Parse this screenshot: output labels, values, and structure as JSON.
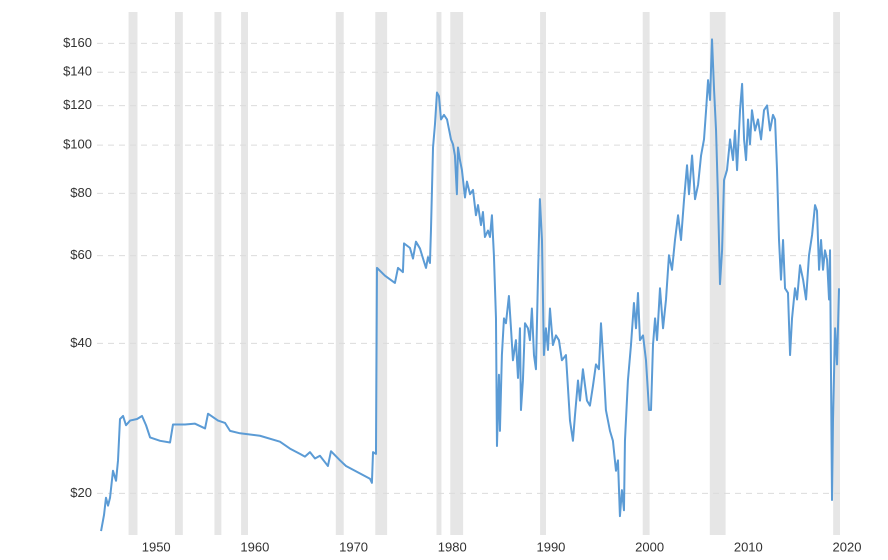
{
  "chart_data": {
    "type": "line",
    "log_y": true,
    "grid": true,
    "xlim": [
      1944,
      2020
    ],
    "xticks": [
      1950,
      1960,
      1970,
      1980,
      1990,
      2000,
      2010,
      2020
    ],
    "ylim": [
      16.5,
      185
    ],
    "yticks": [
      {
        "value": 20,
        "label": "$20"
      },
      {
        "value": 40,
        "label": "$40"
      },
      {
        "value": 60,
        "label": "$60"
      },
      {
        "value": 80,
        "label": "$80"
      },
      {
        "value": 100,
        "label": "$100"
      },
      {
        "value": 120,
        "label": "$120"
      },
      {
        "value": 140,
        "label": "$140"
      },
      {
        "value": 160,
        "label": "$160"
      }
    ],
    "recessions": [
      [
        1947.2,
        1948.1
      ],
      [
        1951.9,
        1952.7
      ],
      [
        1955.9,
        1956.6
      ],
      [
        1958.6,
        1959.3
      ],
      [
        1968.2,
        1969.0
      ],
      [
        1972.2,
        1973.4
      ],
      [
        1978.4,
        1978.9
      ],
      [
        1979.8,
        1981.1
      ],
      [
        1988.9,
        1989.5
      ],
      [
        1999.3,
        2000.0
      ],
      [
        2006.1,
        2007.7
      ],
      [
        2018.6,
        2019.3
      ]
    ],
    "recession_color": "#e6e6e6",
    "series": [
      {
        "color": "#5b9bd5",
        "x": [
          1944.41,
          1944.71,
          1944.91,
          1945.12,
          1945.32,
          1945.62,
          1945.93,
          1946.13,
          1946.33,
          1946.64,
          1946.94,
          1947.35,
          1948.06,
          1948.56,
          1948.97,
          1949.38,
          1950.39,
          1951.4,
          1951.7,
          1952.92,
          1953.93,
          1954.95,
          1955.25,
          1956.26,
          1956.97,
          1957.48,
          1958.49,
          1960.51,
          1962.54,
          1963.55,
          1964.57,
          1965.07,
          1965.58,
          1966.09,
          1966.59,
          1967.1,
          1967.4,
          1967.71,
          1968.62,
          1969.23,
          1971.66,
          1971.86,
          1971.97,
          1972.27,
          1972.37,
          1973.18,
          1974.19,
          1974.5,
          1975.0,
          1975.11,
          1975.71,
          1976.02,
          1976.32,
          1976.73,
          1977.13,
          1977.34,
          1977.54,
          1977.74,
          1977.84,
          1978.05,
          1978.25,
          1978.45,
          1978.65,
          1978.86,
          1979.16,
          1979.47,
          1979.87,
          1980.07,
          1980.27,
          1980.47,
          1980.58,
          1980.78,
          1980.98,
          1981.29,
          1981.49,
          1981.8,
          1982.1,
          1982.4,
          1982.61,
          1982.91,
          1983.11,
          1983.31,
          1983.62,
          1983.82,
          1984.02,
          1984.22,
          1984.43,
          1984.53,
          1984.73,
          1984.83,
          1985.03,
          1985.24,
          1985.44,
          1985.74,
          1985.95,
          1986.15,
          1986.45,
          1986.66,
          1986.86,
          1986.96,
          1987.16,
          1987.37,
          1987.67,
          1987.87,
          1988.07,
          1988.28,
          1988.48,
          1988.68,
          1988.88,
          1989.09,
          1989.29,
          1989.49,
          1989.7,
          1989.9,
          1990.2,
          1990.51,
          1990.81,
          1991.11,
          1991.52,
          1991.93,
          1992.23,
          1992.43,
          1992.74,
          1992.94,
          1993.24,
          1993.65,
          1993.95,
          1994.26,
          1994.56,
          1994.86,
          1995.07,
          1995.27,
          1995.57,
          1995.98,
          1996.28,
          1996.59,
          1996.79,
          1996.99,
          1997.19,
          1997.4,
          1997.5,
          1997.8,
          1998.11,
          1998.41,
          1998.62,
          1998.82,
          1999.02,
          1999.33,
          1999.63,
          1999.94,
          2000.14,
          2000.34,
          2000.55,
          2000.75,
          2001.05,
          2001.36,
          2001.66,
          2001.96,
          2002.27,
          2002.57,
          2002.88,
          2003.18,
          2003.49,
          2003.79,
          2003.99,
          2004.3,
          2004.6,
          2004.91,
          2005.21,
          2005.51,
          2005.72,
          2005.92,
          2006.12,
          2006.32,
          2006.53,
          2006.73,
          2006.93,
          2007.13,
          2007.34,
          2007.54,
          2007.84,
          2008.15,
          2008.45,
          2008.65,
          2008.86,
          2009.16,
          2009.37,
          2009.57,
          2009.77,
          2009.97,
          2010.17,
          2010.37,
          2010.68,
          2010.98,
          2011.29,
          2011.59,
          2011.9,
          2012.2,
          2012.5,
          2012.71,
          2012.91,
          2013.11,
          2013.31,
          2013.52,
          2013.72,
          2014.02,
          2014.23,
          2014.43,
          2014.73,
          2014.94,
          2015.24,
          2015.55,
          2015.85,
          2016.15,
          2016.46,
          2016.76,
          2016.96,
          2017.17,
          2017.37,
          2017.57,
          2017.77,
          2017.98,
          2018.18,
          2018.28,
          2018.48,
          2018.58,
          2018.79,
          2018.99,
          2019.19
        ],
        "values": [
          16.8,
          18.1,
          19.6,
          18.9,
          19.6,
          22.2,
          21.2,
          23.3,
          28.2,
          28.6,
          27.4,
          28.0,
          28.2,
          28.6,
          27.4,
          25.9,
          25.5,
          25.3,
          27.5,
          27.5,
          27.6,
          27.0,
          28.9,
          28.0,
          27.7,
          26.7,
          26.4,
          26.1,
          25.4,
          24.6,
          24.0,
          23.7,
          24.2,
          23.5,
          23.8,
          23.1,
          22.7,
          24.3,
          23.3,
          22.7,
          21.4,
          21.0,
          24.2,
          24.0,
          56.7,
          54.7,
          52.9,
          56.7,
          55.6,
          63.5,
          62.2,
          59.2,
          64.0,
          62.0,
          58.4,
          56.7,
          59.6,
          58.0,
          67.3,
          98.9,
          110.2,
          127.5,
          125.4,
          112.6,
          115.0,
          112.6,
          102.7,
          100.4,
          95.3,
          79.7,
          98.9,
          93.3,
          89.1,
          78.5,
          84.5,
          79.7,
          81.3,
          72.3,
          75.8,
          69.1,
          73.4,
          65.4,
          67.4,
          65.4,
          72.3,
          60.1,
          44.9,
          24.9,
          34.6,
          26.7,
          37.9,
          44.9,
          43.9,
          49.8,
          42.9,
          37.0,
          40.6,
          34.1,
          42.9,
          29.4,
          33.7,
          43.9,
          42.9,
          40.6,
          47.0,
          37.9,
          35.5,
          53.7,
          77.9,
          64.5,
          37.9,
          42.9,
          38.8,
          47.0,
          39.7,
          41.5,
          40.6,
          37.0,
          37.9,
          28.0,
          25.5,
          28.6,
          33.7,
          30.7,
          35.5,
          30.7,
          30.0,
          32.9,
          36.3,
          35.5,
          43.9,
          37.9,
          29.4,
          26.7,
          25.5,
          22.2,
          23.3,
          18.0,
          20.3,
          18.5,
          25.5,
          33.7,
          39.7,
          48.2,
          42.9,
          50.5,
          40.6,
          41.5,
          37.0,
          29.4,
          29.4,
          39.7,
          44.9,
          40.6,
          51.6,
          42.9,
          49.0,
          60.1,
          56.2,
          64.5,
          72.3,
          64.5,
          77.9,
          91.1,
          79.7,
          95.3,
          77.9,
          83.3,
          95.3,
          102.7,
          117.5,
          135.0,
          123.2,
          163.0,
          129.0,
          107.0,
          77.9,
          52.6,
          61.5,
          85.1,
          89.1,
          102.7,
          93.3,
          107.0,
          89.1,
          117.5,
          132.7,
          102.7,
          93.3,
          112.6,
          100.4,
          117.5,
          107.0,
          112.6,
          102.7,
          117.5,
          120.1,
          107.0,
          115.0,
          112.6,
          89.1,
          64.5,
          53.7,
          64.5,
          51.6,
          50.5,
          37.9,
          44.9,
          51.6,
          49.0,
          57.4,
          53.7,
          49.0,
          60.1,
          66.0,
          75.8,
          73.8,
          56.2,
          64.5,
          56.2,
          61.5,
          58.9,
          49.0,
          61.5,
          19.4,
          28.0,
          42.9,
          36.3,
          51.6
        ]
      }
    ]
  }
}
